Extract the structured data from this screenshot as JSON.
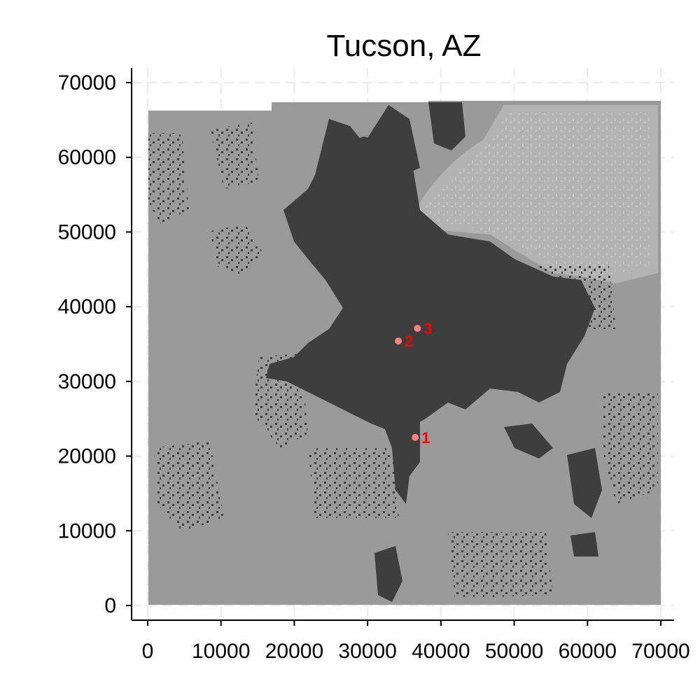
{
  "title": "Tucson, AZ",
  "colors": {
    "background": "#ffffff",
    "grid": "#ebebeb",
    "landcover_base": "#9a9a9a",
    "urban_dense": "#3e3e3e",
    "upland_light": "#b9b9b9",
    "axis": "#000000",
    "site_marker": "#ff8080",
    "site_label": "#ff0000"
  },
  "chart_data": {
    "type": "map",
    "xlim": [
      0,
      70000
    ],
    "ylim": [
      0,
      70000
    ],
    "x_ticks": [
      0,
      10000,
      20000,
      30000,
      40000,
      50000,
      60000,
      70000
    ],
    "y_ticks": [
      0,
      10000,
      20000,
      30000,
      40000,
      50000,
      60000,
      70000
    ],
    "x_tick_labels": [
      "0",
      "10000",
      "20000",
      "30000",
      "40000",
      "50000",
      "60000",
      "70000"
    ],
    "y_tick_labels": [
      "0",
      "10000",
      "20000",
      "30000",
      "40000",
      "50000",
      "60000",
      "70000"
    ],
    "extent": {
      "x": [
        0,
        70000
      ],
      "y": [
        0,
        67500
      ]
    },
    "grid": true,
    "sites": [
      {
        "label": "1",
        "x": 36500,
        "y": 22500
      },
      {
        "label": "2",
        "x": 34200,
        "y": 35400
      },
      {
        "label": "3",
        "x": 36800,
        "y": 37100
      }
    ]
  }
}
